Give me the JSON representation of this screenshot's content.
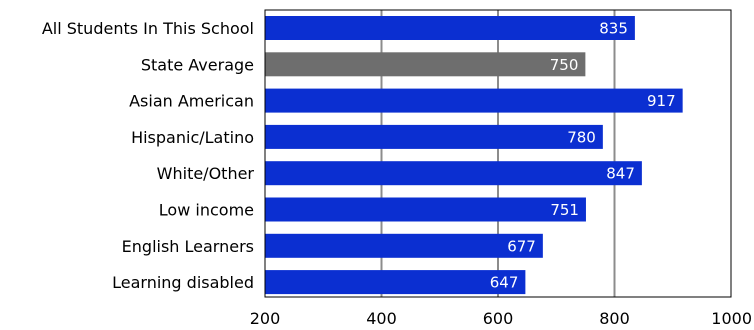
{
  "chart_data": {
    "type": "bar",
    "orientation": "horizontal",
    "categories": [
      "All Students In This School",
      "State Average",
      "Asian American",
      "Hispanic/Latino",
      "White/Other",
      "Low income",
      "English Learners",
      "Learning disabled"
    ],
    "values": [
      835,
      750,
      917,
      780,
      847,
      751,
      677,
      647
    ],
    "bar_colors": [
      "#0b2fd1",
      "#6e6e6e",
      "#0b2fd1",
      "#0b2fd1",
      "#0b2fd1",
      "#0b2fd1",
      "#0b2fd1",
      "#0b2fd1"
    ],
    "xlim": [
      200,
      1000
    ],
    "xticks": [
      200,
      400,
      600,
      800,
      1000
    ],
    "grid": "vertical",
    "gridline_color": "#8c8c8c",
    "value_labels": "inside-end",
    "legend": "none"
  }
}
